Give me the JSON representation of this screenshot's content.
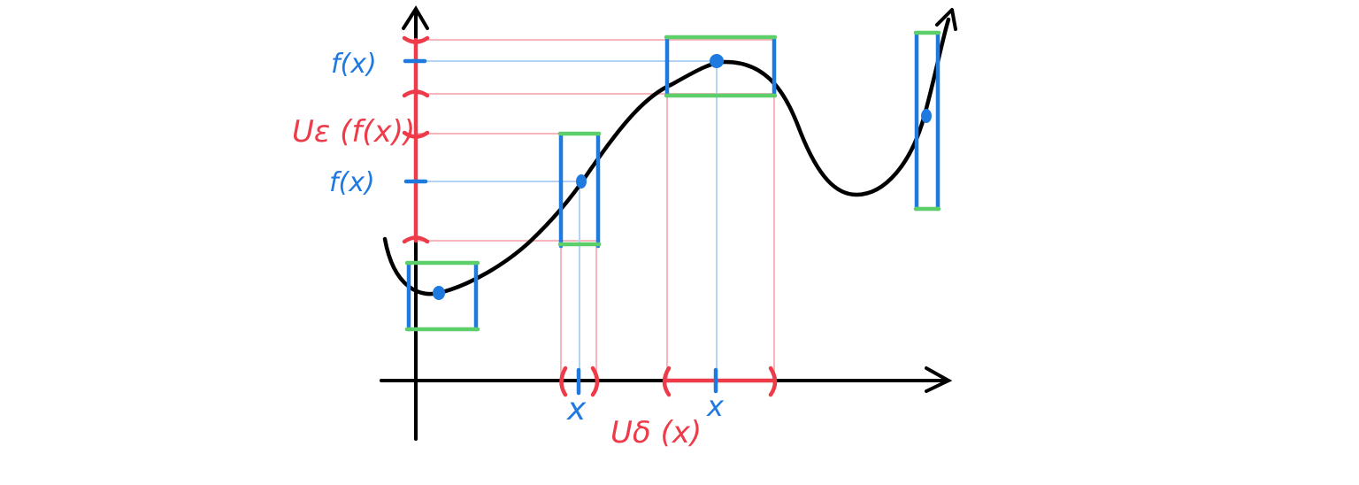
{
  "labels": {
    "fx_upper": "f(x)",
    "fx_lower": "f(x)",
    "epsilon_neighborhood": "Uε (f(x))",
    "x_left": "x",
    "x_right": "x",
    "delta_neighborhood": "Uδ (x)"
  },
  "colors": {
    "curve": "#000000",
    "axes": "#000000",
    "point": "#1f7ae0",
    "box_sides": "#1f7ae0",
    "box_caps": "#5ccf6a",
    "neighborhood": "#ee3b4a",
    "guide_red": "#f6b6bc",
    "guide_blue": "#b5d3f5"
  }
}
